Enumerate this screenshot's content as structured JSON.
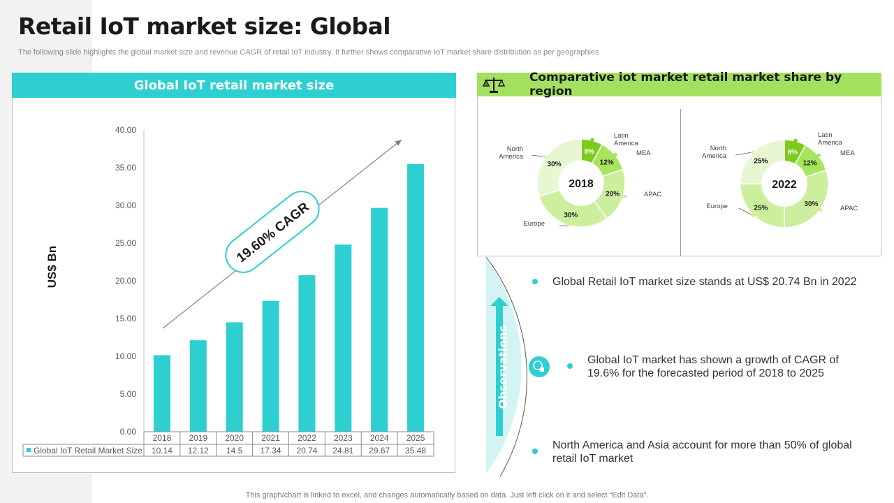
{
  "page": {
    "title": "Retail IoT market size: Global",
    "subtitle": "The following slide highlights the global market size and revenue CAGR of retail IoT industry. It further shows comparative IoT market share distribution as per geographies",
    "footer": "This graph/chart is linked to excel, and changes automatically based on data. Just left click on it and select “Edit Data”."
  },
  "left_panel": {
    "header": "Global IoT retail market size"
  },
  "right_panel": {
    "header": "Comparative iot market retail market share by region"
  },
  "observations": {
    "label": "Observations",
    "items": [
      "Global Retail IoT market size stands at US$ 20.74 Bn in 2022",
      "Global IoT market has shown a growth of CAGR of 19.6% for the forecasted period of 2018 to 2025",
      "North America and Asia account for more than 50% of global retail IoT market"
    ]
  },
  "colors": {
    "bar": "#2ecfd0",
    "green_dark": "#7ccc1e",
    "green_mid": "#a7e55c",
    "green_light": "#ccef9e",
    "green_pale": "#e6f7d2",
    "obs_fill": "#d4f4f4"
  },
  "chart_data": [
    {
      "type": "bar",
      "ylabel": "US$ Bn",
      "ylim": [
        0,
        40
      ],
      "yticks": [
        "0.00",
        "5.00",
        "10.00",
        "15.00",
        "20.00",
        "25.00",
        "30.00",
        "35.00",
        "40.00"
      ],
      "categories": [
        "2018",
        "2019",
        "2020",
        "2021",
        "2022",
        "2023",
        "2024",
        "2025"
      ],
      "series": [
        {
          "name": "Global IoT Retail Market Size",
          "values": [
            10.14,
            12.12,
            14.5,
            17.34,
            20.74,
            24.81,
            29.67,
            35.48
          ],
          "labels": [
            "10.14",
            "12.12",
            "14.5",
            "17.34",
            "20.74",
            "24.81",
            "29.67",
            "35.48"
          ]
        }
      ],
      "annotation": "19.60% CAGR",
      "data_table": true
    },
    {
      "type": "pie",
      "center_label": "2018",
      "slices": [
        {
          "name": "Latin America",
          "value": 8,
          "label": "8%"
        },
        {
          "name": "MEA",
          "value": 12,
          "label": "12%"
        },
        {
          "name": "APAC",
          "value": 20,
          "label": "20%"
        },
        {
          "name": "Europe",
          "value": 30,
          "label": "30%"
        },
        {
          "name": "North America",
          "value": 30,
          "label": "30%"
        }
      ]
    },
    {
      "type": "pie",
      "center_label": "2022",
      "slices": [
        {
          "name": "Latin America",
          "value": 8,
          "label": "8%"
        },
        {
          "name": "MEA",
          "value": 12,
          "label": "12%"
        },
        {
          "name": "APAC",
          "value": 30,
          "label": "30%"
        },
        {
          "name": "Europe",
          "value": 25,
          "label": "25%"
        },
        {
          "name": "North America",
          "value": 25,
          "label": "25%"
        }
      ]
    }
  ]
}
